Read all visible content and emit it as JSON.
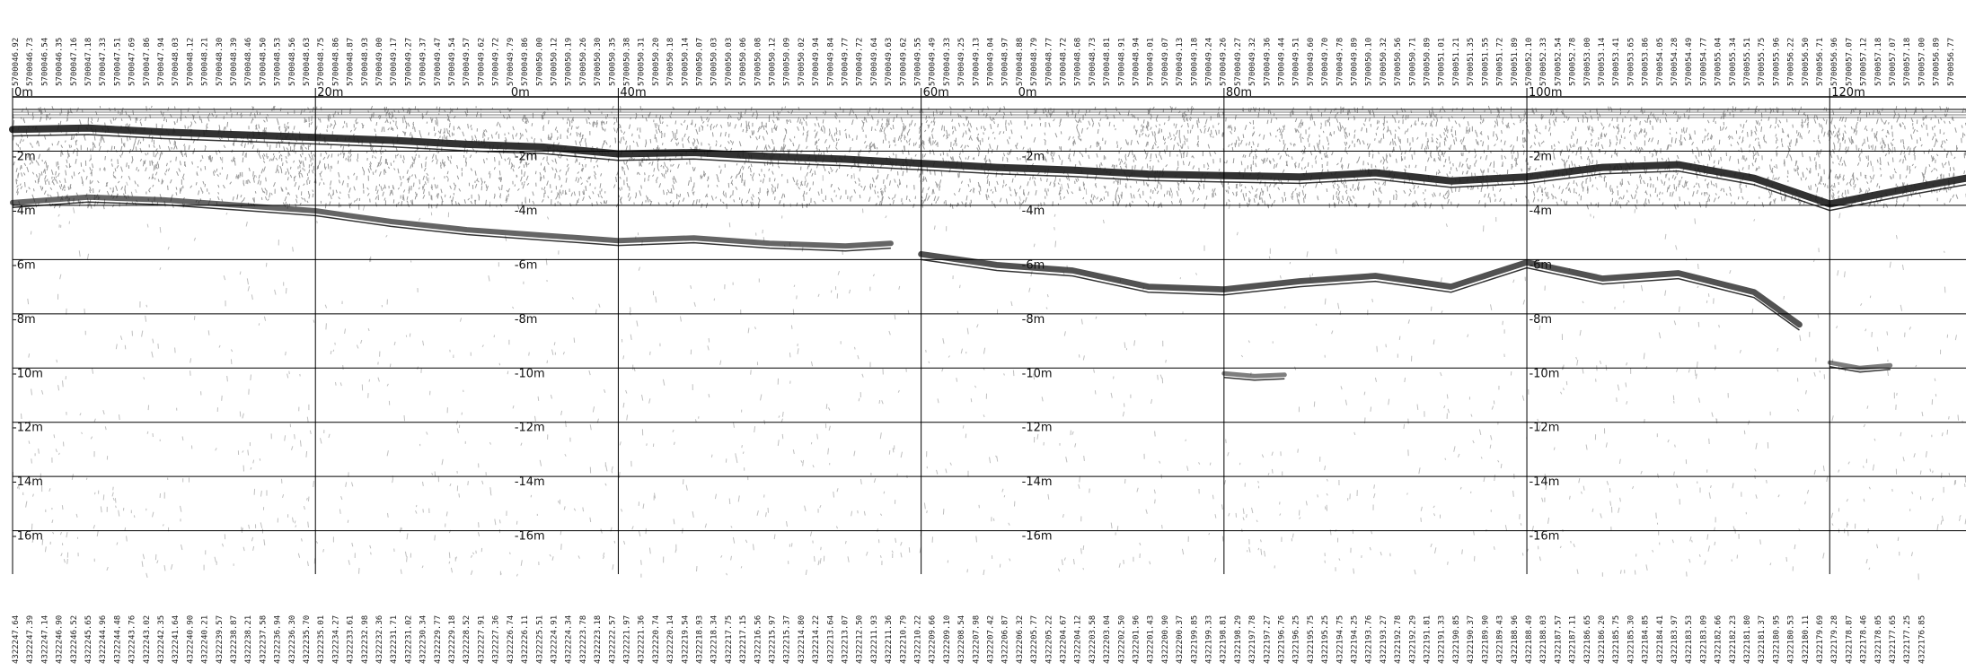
{
  "chart_data": {
    "type": "radargram",
    "title": "",
    "x_unit": "m",
    "y_unit": "m",
    "xlim": [
      0,
      129
    ],
    "ylim": [
      -17.6,
      0
    ],
    "x_ticks": [
      0,
      20,
      40,
      60,
      80,
      100,
      120
    ],
    "x_tick_labels": [
      "0m",
      "20m",
      "40m",
      "60m",
      "80m",
      "100m",
      "120m"
    ],
    "extra_top_labels": [
      "0m",
      "0m"
    ],
    "depth_ticks": [
      -2,
      -4,
      -6,
      -8,
      -10,
      -12,
      -14,
      -16
    ],
    "depth_tick_labels": [
      "-2m",
      "-4m",
      "-6m",
      "-8m",
      "-10m",
      "-12m",
      "-14m",
      "-16m"
    ],
    "depth_label_columns_m": [
      0,
      33.5,
      67,
      100.5
    ],
    "grid": true,
    "colors": {
      "background": "#ffffff",
      "grid": "#000000",
      "signal": "#333333"
    },
    "top_labels": [
      "5700046.92",
      "5700046.73",
      "5700046.54",
      "5700046.35",
      "5700047.16",
      "5700047.18",
      "5700047.33",
      "5700047.51",
      "5700047.69",
      "5700047.86",
      "5700047.94",
      "5700048.03",
      "5700048.12",
      "5700048.21",
      "5700048.30",
      "5700048.39",
      "5700048.46",
      "5700048.50",
      "5700048.53",
      "5700048.56",
      "5700048.63",
      "5700048.75",
      "5700048.86",
      "5700048.87",
      "5700048.93",
      "5700049.00",
      "5700049.17",
      "5700049.27",
      "5700049.37",
      "5700049.47",
      "5700049.54",
      "5700049.57",
      "5700049.62",
      "5700049.72",
      "5700049.79",
      "5700049.86",
      "5700050.00",
      "5700050.12",
      "5700050.19",
      "5700050.26",
      "5700050.30",
      "5700050.35",
      "5700050.38",
      "5700050.31",
      "5700050.20",
      "5700050.18",
      "5700050.14",
      "5700050.07",
      "5700050.03",
      "5700050.03",
      "5700050.06",
      "5700050.08",
      "5700050.12",
      "5700050.09",
      "5700050.02",
      "5700049.94",
      "5700049.84",
      "5700049.77",
      "5700049.72",
      "5700049.64",
      "5700049.63",
      "5700049.62",
      "5700049.55",
      "5700049.49",
      "5700049.33",
      "5700049.25",
      "5700049.13",
      "5700049.04",
      "5700048.97",
      "5700048.88",
      "5700048.79",
      "5700048.77",
      "5700048.72",
      "5700048.68",
      "5700048.73",
      "5700048.81",
      "5700048.91",
      "5700048.94",
      "5700049.01",
      "5700049.07",
      "5700049.13",
      "5700049.18",
      "5700049.24",
      "5700049.26",
      "5700049.27",
      "5700049.32",
      "5700049.36",
      "5700049.44",
      "5700049.51",
      "5700049.60",
      "5700049.70",
      "5700049.78",
      "5700049.89",
      "5700050.10",
      "5700050.32",
      "5700050.56",
      "5700050.71",
      "5700050.89",
      "5700051.01",
      "5700051.21",
      "5700051.35",
      "5700051.55",
      "5700051.72",
      "5700051.89",
      "5700052.10",
      "5700052.33",
      "5700052.54",
      "5700052.78",
      "5700053.00",
      "5700053.14",
      "5700053.41",
      "5700053.65",
      "5700053.86",
      "5700054.05",
      "5700054.28",
      "5700054.49",
      "5700054.77",
      "5700055.04",
      "5700055.34",
      "5700055.51",
      "5700055.75",
      "5700055.96",
      "5700056.22",
      "5700056.50",
      "5700056.71",
      "5700056.96",
      "5700057.07",
      "5700057.12",
      "5700057.18",
      "5700057.07",
      "5700057.18",
      "5700057.00",
      "5700056.89",
      "5700056.77"
    ],
    "bottom_labels": [
      "4322247.64",
      "4322247.39",
      "4322247.14",
      "4322246.90",
      "4322246.52",
      "4322245.65",
      "4322244.96",
      "4322244.48",
      "4322243.76",
      "4322243.02",
      "4322242.35",
      "4322241.64",
      "4322240.90",
      "4322240.21",
      "4322239.57",
      "4322238.87",
      "4322238.21",
      "4322237.58",
      "4322236.94",
      "4322236.30",
      "4322235.70",
      "4322235.01",
      "4322234.27",
      "4322233.61",
      "4322232.98",
      "4322232.36",
      "4322231.71",
      "4322231.02",
      "4322230.34",
      "4322229.77",
      "4322229.18",
      "4322228.52",
      "4322227.91",
      "4322227.36",
      "4322226.74",
      "4322226.11",
      "4322225.51",
      "4322224.91",
      "4322224.34",
      "4322223.78",
      "4322223.18",
      "4322222.57",
      "4322221.97",
      "4322221.36",
      "4322220.74",
      "4322220.14",
      "4322219.54",
      "4322218.93",
      "4322218.34",
      "4322217.75",
      "4322217.15",
      "4322216.56",
      "4322215.97",
      "4322215.37",
      "4322214.80",
      "4322214.22",
      "4322213.64",
      "4322213.07",
      "4322212.50",
      "4322211.93",
      "4322211.36",
      "4322210.79",
      "4322210.22",
      "4322209.66",
      "4322209.10",
      "4322208.54",
      "4322207.98",
      "4322207.42",
      "4322206.87",
      "4322206.32",
      "4322205.77",
      "4322205.22",
      "4322204.67",
      "4322204.12",
      "4322203.58",
      "4322203.04",
      "4322202.50",
      "4322201.96",
      "4322201.43",
      "4322200.90",
      "4322200.37",
      "4322199.85",
      "4322199.33",
      "4322198.81",
      "4322198.29",
      "4322197.78",
      "4322197.27",
      "4322196.76",
      "4322196.25",
      "4322195.75",
      "4322195.25",
      "4322194.75",
      "4322194.25",
      "4322193.76",
      "4322193.27",
      "4322192.78",
      "4322192.29",
      "4322191.81",
      "4322191.33",
      "4322190.85",
      "4322190.37",
      "4322189.90",
      "4322189.43",
      "4322188.96",
      "4322188.49",
      "4322188.03",
      "4322187.57",
      "4322187.11",
      "4322186.65",
      "4322186.20",
      "4322185.75",
      "4322185.30",
      "4322184.85",
      "4322184.41",
      "4322183.97",
      "4322183.53",
      "4322183.09",
      "4322182.66",
      "4322182.23",
      "4322181.80",
      "4322181.37",
      "4322180.95",
      "4322180.53",
      "4322180.11",
      "4322179.69",
      "4322179.28",
      "4322178.87",
      "4322178.46",
      "4322178.05",
      "4322177.65",
      "4322177.25",
      "4322176.85"
    ],
    "reflectors": [
      {
        "name": "",
        "strength": 1.0,
        "x": [
          0,
          5,
          10,
          15,
          20,
          25,
          30,
          35,
          40,
          45,
          50,
          55,
          60,
          65,
          70,
          75,
          80,
          85,
          90,
          95,
          100,
          105,
          110,
          115,
          120,
          125,
          129
        ],
        "y": [
          -1.2,
          -1.15,
          -1.3,
          -1.4,
          -1.5,
          -1.6,
          -1.75,
          -1.85,
          -2.1,
          -2.05,
          -2.2,
          -2.3,
          -2.45,
          -2.6,
          -2.7,
          -2.85,
          -2.9,
          -2.95,
          -2.8,
          -3.1,
          -2.95,
          -2.6,
          -2.5,
          -3.0,
          -3.95,
          -3.4,
          -3.0
        ]
      },
      {
        "name": "",
        "strength": 0.6,
        "x": [
          0,
          5,
          10,
          15,
          20,
          25,
          30,
          35,
          40,
          45,
          50,
          55,
          58
        ],
        "y": [
          -3.9,
          -3.7,
          -3.8,
          -4.0,
          -4.2,
          -4.6,
          -4.9,
          -5.1,
          -5.3,
          -5.2,
          -5.4,
          -5.5,
          -5.4
        ]
      },
      {
        "name": "",
        "strength": 0.75,
        "x": [
          60,
          65,
          70,
          75,
          80,
          85,
          90,
          95,
          100,
          105,
          110,
          115,
          118
        ],
        "y": [
          -5.8,
          -6.2,
          -6.4,
          -7.0,
          -7.1,
          -6.8,
          -6.6,
          -7.0,
          -6.1,
          -6.7,
          -6.5,
          -7.2,
          -8.4
        ]
      },
      {
        "name": "",
        "strength": 0.4,
        "x": [
          80,
          82,
          84
        ],
        "y": [
          -10.2,
          -10.3,
          -10.25
        ]
      },
      {
        "name": "",
        "strength": 0.4,
        "x": [
          120,
          122,
          124
        ],
        "y": [
          -9.8,
          -10.0,
          -9.9
        ]
      }
    ]
  }
}
